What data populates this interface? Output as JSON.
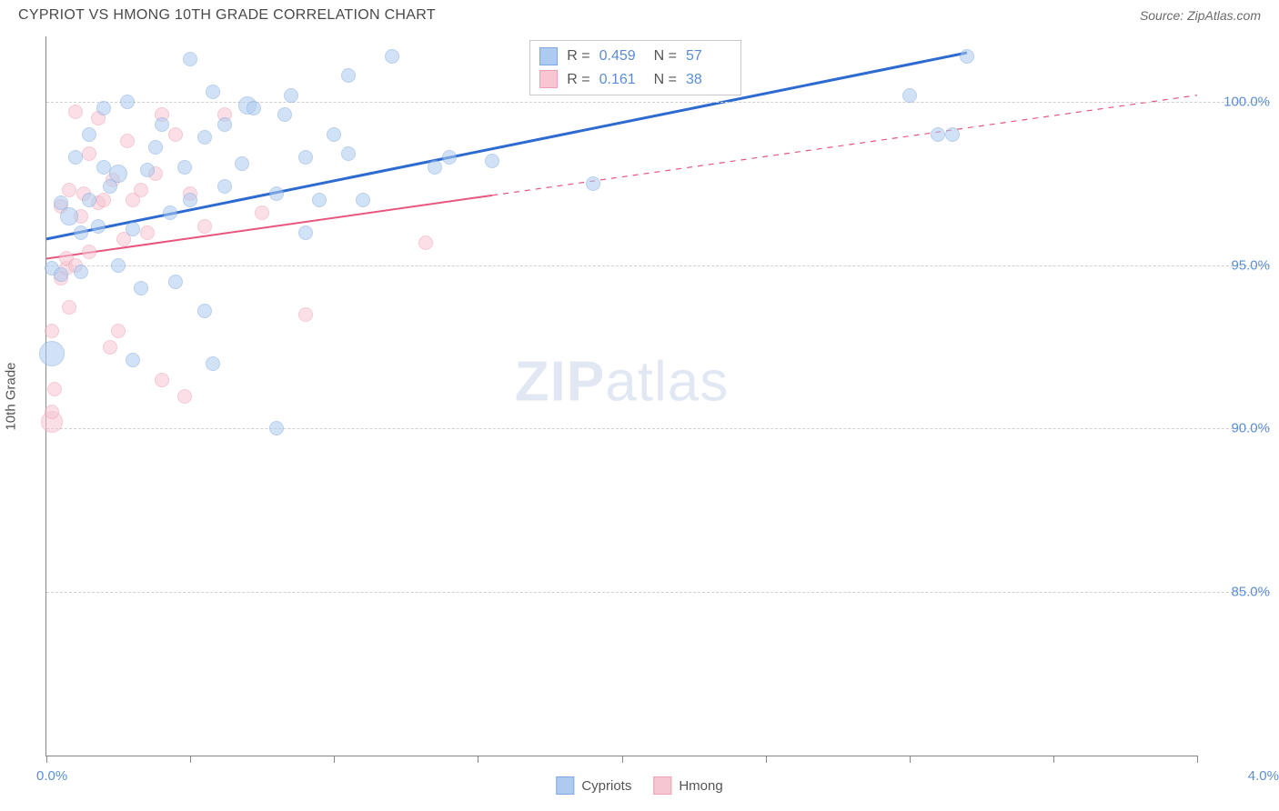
{
  "header": {
    "title": "CYPRIOT VS HMONG 10TH GRADE CORRELATION CHART",
    "source_prefix": "Source: ",
    "source_name": "ZipAtlas.com"
  },
  "watermark": {
    "bold": "ZIP",
    "light": "atlas"
  },
  "axes": {
    "y_title": "10th Grade",
    "x_min_label": "0.0%",
    "x_max_label": "4.0%",
    "x_min": 0.0,
    "x_max": 4.0,
    "y_min": 80.0,
    "y_max": 102.0,
    "y_ticks": [
      {
        "v": 85.0,
        "label": "85.0%"
      },
      {
        "v": 90.0,
        "label": "90.0%"
      },
      {
        "v": 95.0,
        "label": "95.0%"
      },
      {
        "v": 100.0,
        "label": "100.0%"
      }
    ],
    "x_tick_positions": [
      0.0,
      0.5,
      1.0,
      1.5,
      2.0,
      2.5,
      3.0,
      3.5,
      4.0
    ],
    "grid_color": "#d0d0d0",
    "axis_color": "#888888",
    "tick_label_color": "#5b8dd6"
  },
  "series": {
    "a": {
      "name": "Cypriots",
      "fill": "#aecbef",
      "stroke": "#7fa9df",
      "trend_color": "#2e6bd0",
      "trend_width": 3,
      "trend": {
        "x1": 0.0,
        "y1": 95.8,
        "x2": 3.2,
        "y2": 101.5,
        "dash_from_x": null
      },
      "R_label": "R = ",
      "R": "0.459",
      "N_label": "N = ",
      "N": "57",
      "points": [
        {
          "x": 0.02,
          "y": 92.3,
          "r": 14
        },
        {
          "x": 0.02,
          "y": 94.9,
          "r": 8
        },
        {
          "x": 0.05,
          "y": 94.7,
          "r": 8
        },
        {
          "x": 0.05,
          "y": 96.9,
          "r": 8
        },
        {
          "x": 0.08,
          "y": 96.5,
          "r": 10
        },
        {
          "x": 0.1,
          "y": 98.3,
          "r": 8
        },
        {
          "x": 0.12,
          "y": 94.8,
          "r": 8
        },
        {
          "x": 0.12,
          "y": 96.0,
          "r": 8
        },
        {
          "x": 0.15,
          "y": 97.0,
          "r": 8
        },
        {
          "x": 0.15,
          "y": 99.0,
          "r": 8
        },
        {
          "x": 0.18,
          "y": 96.2,
          "r": 8
        },
        {
          "x": 0.2,
          "y": 98.0,
          "r": 8
        },
        {
          "x": 0.2,
          "y": 99.8,
          "r": 8
        },
        {
          "x": 0.22,
          "y": 97.4,
          "r": 8
        },
        {
          "x": 0.25,
          "y": 95.0,
          "r": 8
        },
        {
          "x": 0.25,
          "y": 97.8,
          "r": 10
        },
        {
          "x": 0.28,
          "y": 100.0,
          "r": 8
        },
        {
          "x": 0.3,
          "y": 92.1,
          "r": 8
        },
        {
          "x": 0.3,
          "y": 96.1,
          "r": 8
        },
        {
          "x": 0.33,
          "y": 94.3,
          "r": 8
        },
        {
          "x": 0.35,
          "y": 97.9,
          "r": 8
        },
        {
          "x": 0.38,
          "y": 98.6,
          "r": 8
        },
        {
          "x": 0.4,
          "y": 99.3,
          "r": 8
        },
        {
          "x": 0.43,
          "y": 96.6,
          "r": 8
        },
        {
          "x": 0.45,
          "y": 94.5,
          "r": 8
        },
        {
          "x": 0.48,
          "y": 98.0,
          "r": 8
        },
        {
          "x": 0.5,
          "y": 97.0,
          "r": 8
        },
        {
          "x": 0.5,
          "y": 101.3,
          "r": 8
        },
        {
          "x": 0.55,
          "y": 93.6,
          "r": 8
        },
        {
          "x": 0.55,
          "y": 98.9,
          "r": 8
        },
        {
          "x": 0.58,
          "y": 100.3,
          "r": 8
        },
        {
          "x": 0.62,
          "y": 97.4,
          "r": 8
        },
        {
          "x": 0.62,
          "y": 99.3,
          "r": 8
        },
        {
          "x": 0.68,
          "y": 98.1,
          "r": 8
        },
        {
          "x": 0.7,
          "y": 99.9,
          "r": 10
        },
        {
          "x": 0.72,
          "y": 99.8,
          "r": 8
        },
        {
          "x": 0.8,
          "y": 90.0,
          "r": 8
        },
        {
          "x": 0.8,
          "y": 97.2,
          "r": 8
        },
        {
          "x": 0.83,
          "y": 99.6,
          "r": 8
        },
        {
          "x": 0.85,
          "y": 100.2,
          "r": 8
        },
        {
          "x": 0.9,
          "y": 96.0,
          "r": 8
        },
        {
          "x": 0.9,
          "y": 98.3,
          "r": 8
        },
        {
          "x": 0.95,
          "y": 97.0,
          "r": 8
        },
        {
          "x": 1.0,
          "y": 99.0,
          "r": 8
        },
        {
          "x": 1.05,
          "y": 98.4,
          "r": 8
        },
        {
          "x": 1.05,
          "y": 100.8,
          "r": 8
        },
        {
          "x": 1.1,
          "y": 97.0,
          "r": 8
        },
        {
          "x": 1.2,
          "y": 101.4,
          "r": 8
        },
        {
          "x": 1.35,
          "y": 98.0,
          "r": 8
        },
        {
          "x": 1.4,
          "y": 98.3,
          "r": 8
        },
        {
          "x": 1.55,
          "y": 98.2,
          "r": 8
        },
        {
          "x": 1.9,
          "y": 97.5,
          "r": 8
        },
        {
          "x": 3.0,
          "y": 100.2,
          "r": 8
        },
        {
          "x": 3.1,
          "y": 99.0,
          "r": 8
        },
        {
          "x": 3.15,
          "y": 99.0,
          "r": 8
        },
        {
          "x": 3.2,
          "y": 101.4,
          "r": 8
        },
        {
          "x": 0.58,
          "y": 92.0,
          "r": 8
        }
      ]
    },
    "b": {
      "name": "Hmong",
      "fill": "#f6c6d2",
      "stroke": "#ef9fb3",
      "trend_color": "#e6567e",
      "trend_width": 2,
      "trend": {
        "x1": 0.0,
        "y1": 95.2,
        "x2": 4.0,
        "y2": 100.2,
        "dash_from_x": 1.55
      },
      "R_label": "R = ",
      "R": "0.161",
      "N_label": "N = ",
      "N": "38",
      "points": [
        {
          "x": 0.02,
          "y": 90.2,
          "r": 12
        },
        {
          "x": 0.02,
          "y": 90.5,
          "r": 8
        },
        {
          "x": 0.03,
          "y": 91.2,
          "r": 8
        },
        {
          "x": 0.02,
          "y": 93.0,
          "r": 8
        },
        {
          "x": 0.05,
          "y": 94.6,
          "r": 8
        },
        {
          "x": 0.05,
          "y": 96.8,
          "r": 8
        },
        {
          "x": 0.07,
          "y": 94.9,
          "r": 8
        },
        {
          "x": 0.07,
          "y": 95.2,
          "r": 8
        },
        {
          "x": 0.08,
          "y": 97.3,
          "r": 8
        },
        {
          "x": 0.1,
          "y": 95.0,
          "r": 8
        },
        {
          "x": 0.1,
          "y": 99.7,
          "r": 8
        },
        {
          "x": 0.12,
          "y": 96.5,
          "r": 8
        },
        {
          "x": 0.13,
          "y": 97.2,
          "r": 8
        },
        {
          "x": 0.15,
          "y": 95.4,
          "r": 8
        },
        {
          "x": 0.15,
          "y": 98.4,
          "r": 8
        },
        {
          "x": 0.18,
          "y": 96.9,
          "r": 8
        },
        {
          "x": 0.18,
          "y": 99.5,
          "r": 8
        },
        {
          "x": 0.2,
          "y": 97.0,
          "r": 8
        },
        {
          "x": 0.22,
          "y": 92.5,
          "r": 8
        },
        {
          "x": 0.23,
          "y": 97.6,
          "r": 8
        },
        {
          "x": 0.25,
          "y": 93.0,
          "r": 8
        },
        {
          "x": 0.27,
          "y": 95.8,
          "r": 8
        },
        {
          "x": 0.28,
          "y": 98.8,
          "r": 8
        },
        {
          "x": 0.3,
          "y": 97.0,
          "r": 8
        },
        {
          "x": 0.33,
          "y": 97.3,
          "r": 8
        },
        {
          "x": 0.35,
          "y": 96.0,
          "r": 8
        },
        {
          "x": 0.38,
          "y": 97.8,
          "r": 8
        },
        {
          "x": 0.4,
          "y": 99.6,
          "r": 8
        },
        {
          "x": 0.4,
          "y": 91.5,
          "r": 8
        },
        {
          "x": 0.45,
          "y": 99.0,
          "r": 8
        },
        {
          "x": 0.48,
          "y": 91.0,
          "r": 8
        },
        {
          "x": 0.5,
          "y": 97.2,
          "r": 8
        },
        {
          "x": 0.55,
          "y": 96.2,
          "r": 8
        },
        {
          "x": 0.62,
          "y": 99.6,
          "r": 8
        },
        {
          "x": 0.75,
          "y": 96.6,
          "r": 8
        },
        {
          "x": 0.9,
          "y": 93.5,
          "r": 8
        },
        {
          "x": 1.32,
          "y": 95.7,
          "r": 8
        },
        {
          "x": 0.08,
          "y": 93.7,
          "r": 8
        }
      ]
    }
  },
  "legend_bottom": [
    {
      "series": "a"
    },
    {
      "series": "b"
    }
  ],
  "styling": {
    "point_opacity": 0.55,
    "title_color": "#4a4a4a",
    "title_fontsize": 16,
    "source_color": "#6a6a6a",
    "watermark_color": "#cbd7ea",
    "background_color": "#ffffff"
  }
}
